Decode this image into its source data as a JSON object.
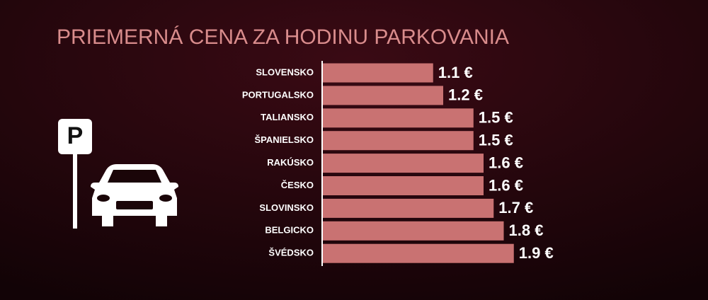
{
  "chart_data": {
    "type": "hbar",
    "title": "PRIEMERNÁ CENA ZA HODINU PARKOVANIA",
    "categories": [
      "SLOVENSKO",
      "PORTUGALSKO",
      "TALIANSKO",
      "ŠPANIELSKO",
      "RAKÚSKO",
      "ČESKO",
      "SLOVINSKO",
      "BELGICKO",
      "ŠVÉDSKO"
    ],
    "values": [
      1.1,
      1.2,
      1.5,
      1.5,
      1.6,
      1.6,
      1.7,
      1.8,
      1.9
    ],
    "value_labels": [
      "1.1 €",
      "1.2 €",
      "1.5 €",
      "1.5 €",
      "1.6 €",
      "1.6 €",
      "1.7 €",
      "1.8 €",
      "1.9 €"
    ],
    "color": "#c97272",
    "xlim": [
      0,
      2
    ]
  }
}
